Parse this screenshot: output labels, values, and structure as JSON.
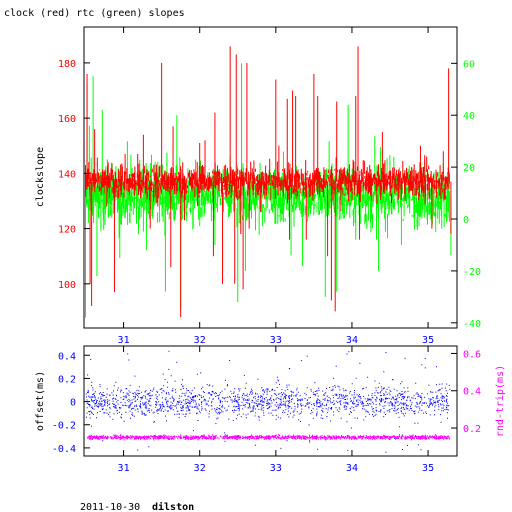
{
  "chart_data": [
    {
      "type": "line",
      "title": "clock (red) rtc (green) slopes",
      "ylabel_left": "clockslope",
      "ylabel_right": "",
      "x_range": [
        30.48,
        35.38
      ],
      "x_ticks": [
        31,
        32,
        33,
        34,
        35
      ],
      "y_left_range": [
        84,
        193
      ],
      "y_left_ticks": [
        100,
        120,
        140,
        160,
        180
      ],
      "y_right_range": [
        -42,
        74
      ],
      "y_right_ticks": [
        -40,
        -20,
        0,
        20,
        40,
        60
      ],
      "grid": false,
      "colors": {
        "axes": "#000000",
        "left_ticks": "#ff0000",
        "right_ticks": "#00ff00",
        "clock": "#ff0000",
        "rtc": "#00ff00"
      },
      "series": [
        {
          "axis": "right",
          "color": "#00ff00",
          "baseline": 9,
          "noise": 4,
          "spikes": [
            [
              30.5,
              -38
            ],
            [
              30.52,
              52
            ],
            [
              30.55,
              36
            ],
            [
              30.6,
              55
            ],
            [
              30.65,
              -22
            ],
            [
              30.72,
              42
            ],
            [
              30.95,
              -15
            ],
            [
              31.05,
              30
            ],
            [
              31.3,
              -12
            ],
            [
              31.45,
              22
            ],
            [
              31.55,
              -28
            ],
            [
              31.7,
              40
            ],
            [
              31.75,
              -35
            ],
            [
              32.2,
              -10
            ],
            [
              32.4,
              24
            ],
            [
              32.5,
              -32
            ],
            [
              32.55,
              60
            ],
            [
              32.6,
              -20
            ],
            [
              33.1,
              26
            ],
            [
              33.2,
              -14
            ],
            [
              33.35,
              -18
            ],
            [
              33.65,
              -30
            ],
            [
              33.7,
              30
            ],
            [
              33.8,
              -28
            ],
            [
              33.95,
              44
            ],
            [
              34.05,
              -8
            ],
            [
              34.3,
              32
            ],
            [
              34.35,
              -20
            ],
            [
              34.55,
              24
            ],
            [
              34.65,
              -10
            ],
            [
              35.0,
              18
            ],
            [
              35.1,
              -5
            ],
            [
              35.3,
              -14
            ]
          ]
        },
        {
          "axis": "left",
          "color": "#ff0000",
          "baseline": 137,
          "noise": 2.2,
          "spikes": [
            [
              30.52,
              176
            ],
            [
              30.56,
              100
            ],
            [
              30.58,
              92
            ],
            [
              30.62,
              156
            ],
            [
              30.78,
              128
            ],
            [
              30.88,
              97
            ],
            [
              31.02,
              147
            ],
            [
              31.26,
              154
            ],
            [
              31.35,
              120
            ],
            [
              31.45,
              128
            ],
            [
              31.5,
              180
            ],
            [
              31.62,
              106
            ],
            [
              31.65,
              157
            ],
            [
              31.75,
              88
            ],
            [
              31.8,
              123
            ],
            [
              32.0,
              151
            ],
            [
              32.07,
              152
            ],
            [
              32.18,
              110
            ],
            [
              32.2,
              162
            ],
            [
              32.3,
              100
            ],
            [
              32.4,
              186
            ],
            [
              32.46,
              100
            ],
            [
              32.48,
              183
            ],
            [
              32.54,
              118
            ],
            [
              32.57,
              98
            ],
            [
              32.62,
              180
            ],
            [
              32.65,
              120
            ],
            [
              32.8,
              126
            ],
            [
              33.0,
              174
            ],
            [
              33.04,
              150
            ],
            [
              33.15,
              167
            ],
            [
              33.18,
              116
            ],
            [
              33.22,
              170
            ],
            [
              33.26,
              168
            ],
            [
              33.4,
              116
            ],
            [
              33.5,
              176
            ],
            [
              33.55,
              168
            ],
            [
              33.68,
              110
            ],
            [
              33.73,
              94
            ],
            [
              33.78,
              90
            ],
            [
              33.8,
              166
            ],
            [
              34.0,
              130
            ],
            [
              34.05,
              168
            ],
            [
              34.08,
              186
            ],
            [
              34.1,
              116
            ],
            [
              34.25,
              140
            ],
            [
              34.4,
              155
            ],
            [
              34.7,
              130
            ],
            [
              34.9,
              150
            ],
            [
              35.05,
              120
            ],
            [
              35.2,
              148
            ],
            [
              35.27,
              178
            ],
            [
              35.3,
              118
            ]
          ]
        }
      ]
    },
    {
      "type": "scatter",
      "title": "",
      "ylabel_left": "offset(ms)",
      "ylabel_right": "rnd-trip(ms)",
      "x_range": [
        30.48,
        35.38
      ],
      "x_ticks": [
        31,
        32,
        33,
        34,
        35
      ],
      "y_left_range": [
        -0.47,
        0.48
      ],
      "y_left_ticks": [
        -0.4,
        -0.2,
        0,
        0.2,
        0.4
      ],
      "y_right_range": [
        0.05,
        0.64
      ],
      "y_right_ticks": [
        0.2,
        0.4,
        0.6
      ],
      "grid": false,
      "colors": {
        "axes": "#000000",
        "x_ticks": "#0000ff",
        "left_ticks": "#0000ff",
        "right_ticks": "#ff00ff",
        "offset": "#0000ff",
        "roundtrip": "#ff00ff"
      },
      "series": [
        {
          "axis": "left",
          "color": "#0000ff",
          "mean": 0.0,
          "spread": 0.12,
          "outlier_range": [
            -0.44,
            0.45
          ]
        },
        {
          "axis": "right",
          "color": "#ff00ff",
          "mean": 0.15,
          "spread": 0.01
        }
      ]
    }
  ],
  "footer": {
    "date": "2011-10-30",
    "host": "dilston"
  }
}
